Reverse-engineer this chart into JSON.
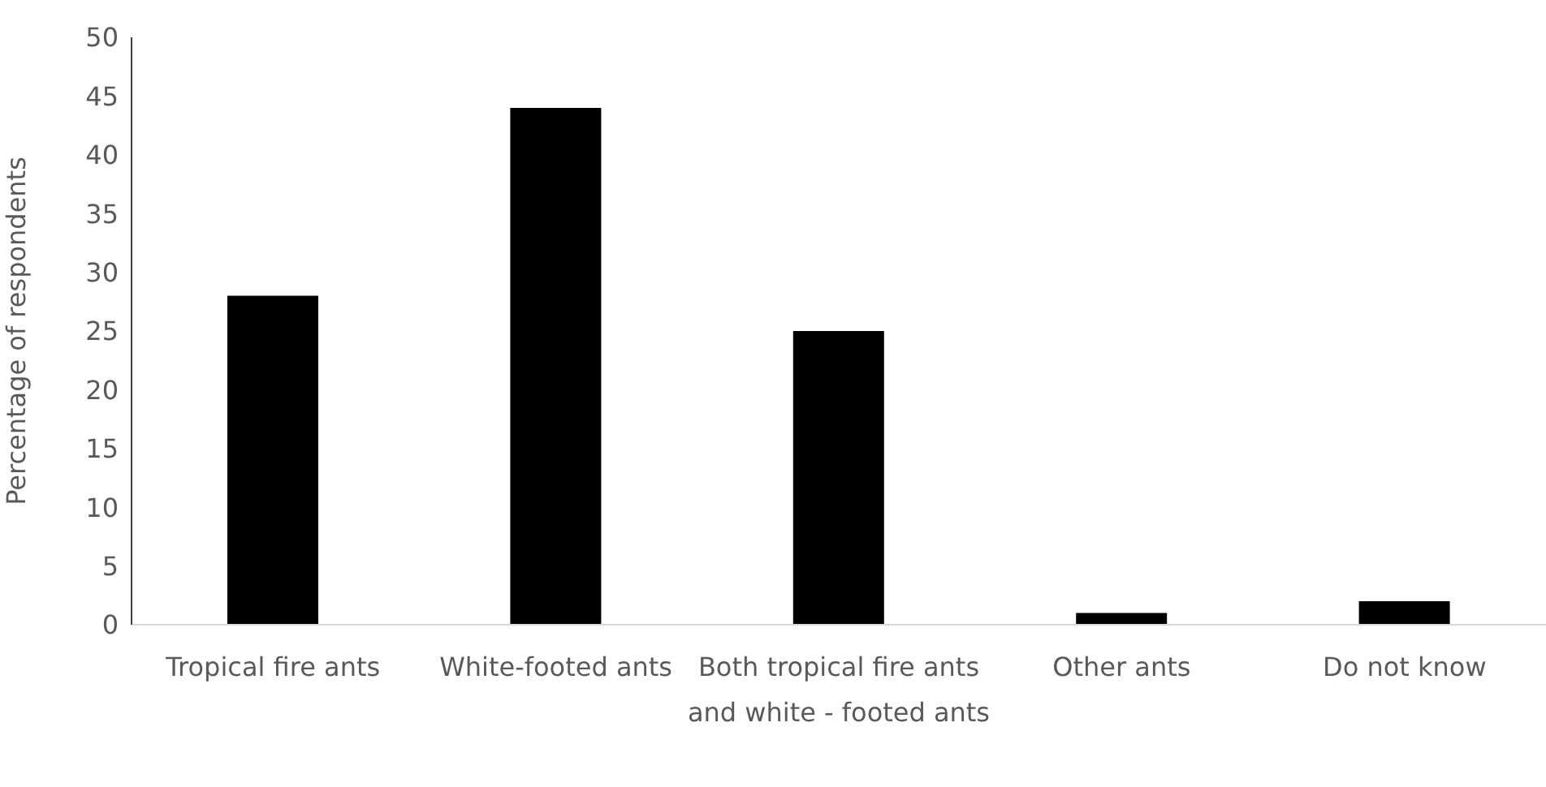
{
  "chart_data": {
    "type": "bar",
    "ylabel": "Percentage of respondents",
    "categories": [
      "Tropical fire ants",
      "White-footed ants",
      "Both tropical fire ants and white - footed ants",
      "Other ants",
      "Do not know"
    ],
    "values": [
      28,
      44,
      25,
      1,
      2
    ],
    "color": "#000000",
    "ylim": [
      0,
      50
    ],
    "yticks": [
      0,
      5,
      10,
      15,
      20,
      25,
      30,
      35,
      40,
      45,
      50
    ]
  }
}
